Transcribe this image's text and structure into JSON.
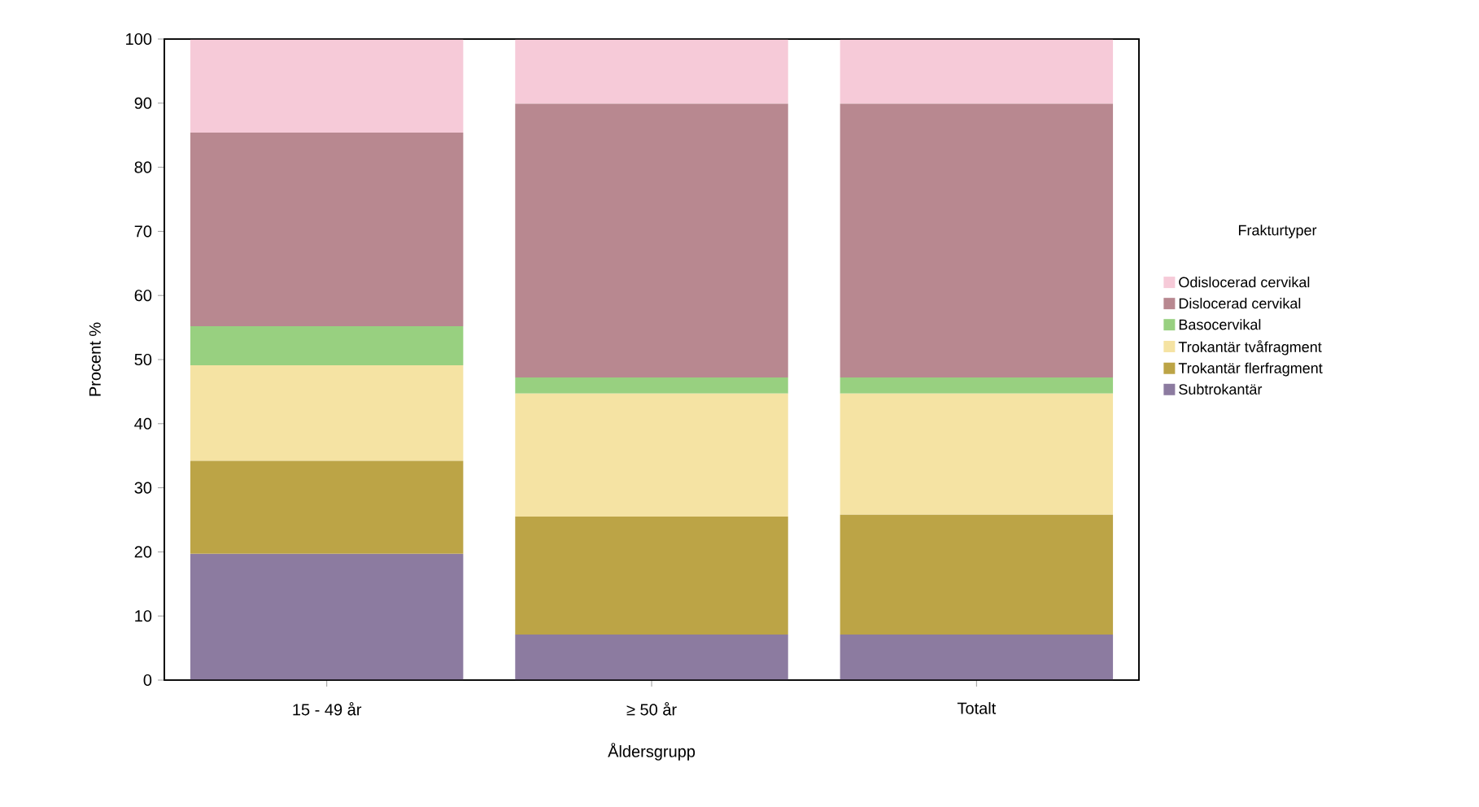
{
  "chart_data": {
    "type": "bar",
    "stacked": true,
    "xlabel": "Åldersgrupp",
    "ylabel": "Procent %",
    "legend_title": "Frakturtyper",
    "legend": "right",
    "categories": [
      "15 - 49 år",
      "≥ 50 år",
      "Totalt"
    ],
    "ylim": [
      0,
      100
    ],
    "yticks": [
      0,
      10,
      20,
      30,
      40,
      50,
      60,
      70,
      80,
      90,
      100
    ],
    "grid": false,
    "series": [
      {
        "name": "Subtrokantär",
        "color": "#8c7ba0",
        "values": [
          19.7,
          7.1,
          7.1
        ]
      },
      {
        "name": "Trokantär flerfragment",
        "color": "#bca446",
        "values": [
          14.5,
          18.4,
          18.7
        ]
      },
      {
        "name": "Trokantär tvåfragment",
        "color": "#f5e3a3",
        "values": [
          14.9,
          19.2,
          18.9
        ]
      },
      {
        "name": "Basocervikal",
        "color": "#98d080",
        "values": [
          6.1,
          2.5,
          2.5
        ]
      },
      {
        "name": "Dislocerad cervikal",
        "color": "#b88890",
        "values": [
          30.2,
          42.7,
          42.7
        ]
      },
      {
        "name": "Odislocerad cervikal",
        "color": "#f6cad8",
        "values": [
          14.6,
          10.1,
          10.1
        ]
      }
    ]
  }
}
